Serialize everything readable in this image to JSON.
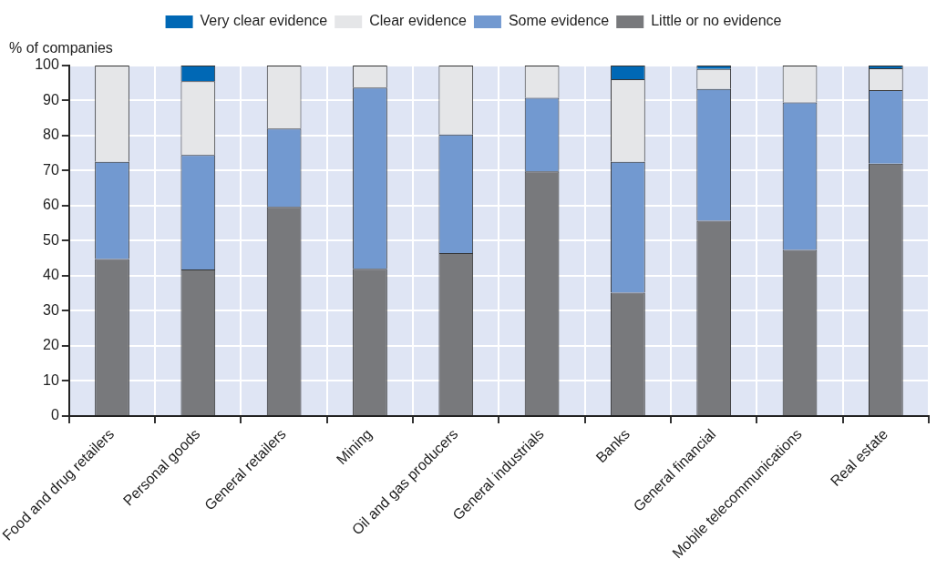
{
  "chart_data": {
    "type": "bar",
    "stacked": true,
    "ylabel": "% of companies",
    "categories": [
      "Food and drug retailers",
      "Personal goods",
      "General retailers",
      "Mining",
      "Oil and gas producers",
      "General industrials",
      "Banks",
      "General financial",
      "Mobile telecommunications",
      "Real estate"
    ],
    "series": [
      {
        "name": "Little or no evidence",
        "color": "#78797c",
        "values": [
          44.8,
          41.8,
          59.7,
          42,
          46.5,
          69.8,
          35.2,
          55.7,
          47.4,
          72
        ]
      },
      {
        "name": "Some evidence",
        "color": "#7299d0",
        "values": [
          27.7,
          32.7,
          22.3,
          51.7,
          33.8,
          21,
          37.3,
          37.6,
          42.1,
          21
        ]
      },
      {
        "name": "Clear evidence",
        "color": "#e5e6e8",
        "values": [
          27.5,
          21,
          18,
          6.3,
          19.7,
          9.2,
          23.6,
          5.7,
          10.5,
          6.2
        ]
      },
      {
        "name": "Very clear evidence",
        "color": "#0068b5",
        "values": [
          0,
          4.5,
          0,
          0,
          0,
          0,
          3.9,
          1,
          0,
          0.8
        ]
      }
    ],
    "ylim": [
      0,
      100
    ],
    "yticks": [
      0,
      10,
      20,
      30,
      40,
      50,
      60,
      70,
      80,
      90,
      100
    ],
    "grid": true,
    "legend": "top"
  }
}
